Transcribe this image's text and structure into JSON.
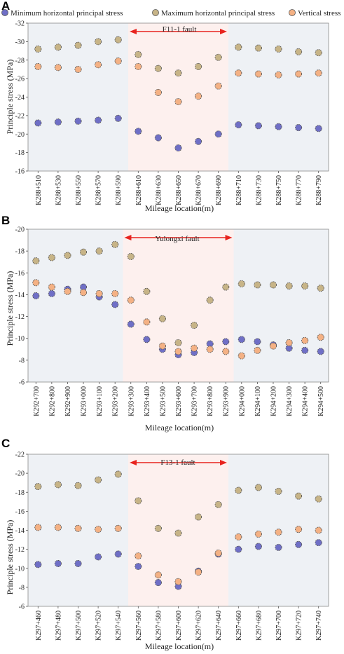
{
  "legend": [
    {
      "name": "Minimum horizontal principal stress",
      "color": "#6f6fc6"
    },
    {
      "name": "Maximum horizontal principal stress",
      "color": "#c7b487"
    },
    {
      "name": "Vertical stress",
      "color": "#f4b184"
    }
  ],
  "colors": {
    "fault_zone": "#fdf0ee",
    "outside_zone": "#eef1f5",
    "fault_arrow": "#e8231e"
  },
  "chart_data": [
    {
      "type": "scatter",
      "panel": "A",
      "fault_label": "F11-1 fault",
      "fault_range": [
        "K288+610",
        "K288+690"
      ],
      "xlabel": "Mileage location(m)",
      "ylabel": "Principle stress (MPa)",
      "ylim": [
        -32,
        -16
      ],
      "yticks": [
        -32,
        -30,
        -28,
        -26,
        -24,
        -22,
        -20,
        -18,
        -16
      ],
      "yaxis_inverted": true,
      "categories": [
        "K288+510",
        "K288+530",
        "K288+550",
        "K288+570",
        "K288+590",
        "K288+610",
        "K288+630",
        "K288+650",
        "K288+670",
        "K288+690",
        "K288+710",
        "K288+730",
        "K288+750",
        "K288+770",
        "K288+790"
      ],
      "series": [
        {
          "name": "Minimum horizontal principal stress",
          "values": [
            -21.2,
            -21.3,
            -21.4,
            -21.5,
            -21.7,
            -20.3,
            -19.6,
            -18.5,
            -19.2,
            -20.0,
            -21.0,
            -20.9,
            -20.8,
            -20.7,
            -20.6
          ]
        },
        {
          "name": "Maximum horizontal principal stress",
          "values": [
            -29.2,
            -29.4,
            -29.6,
            -30.0,
            -30.2,
            -28.6,
            -27.1,
            -26.6,
            -27.3,
            -28.3,
            -29.4,
            -29.3,
            -29.2,
            -28.9,
            -28.8
          ]
        },
        {
          "name": "Vertical stress",
          "values": [
            -27.3,
            -27.2,
            -27.0,
            -27.5,
            -27.9,
            -27.3,
            -24.5,
            -23.5,
            -24.1,
            -25.2,
            -26.6,
            -26.5,
            -26.4,
            -26.5,
            -26.6
          ]
        }
      ]
    },
    {
      "type": "scatter",
      "panel": "B",
      "fault_label": "Yulongxi fault",
      "fault_range": [
        "K293+300",
        "K293+900"
      ],
      "xlabel": "Mileage location(m)",
      "ylabel": "Principle stress (MPa)",
      "ylim": [
        -20,
        -6
      ],
      "yticks": [
        -20,
        -18,
        -16,
        -14,
        -12,
        -10,
        -8,
        -6
      ],
      "yaxis_inverted": true,
      "categories": [
        "K292+700",
        "K292+800",
        "K292+900",
        "K293+000",
        "K293+100",
        "K293+200",
        "K293+300",
        "K293+400",
        "K293+500",
        "K293+600",
        "K293+700",
        "K293+800",
        "K293+900",
        "K294+000",
        "K294+100",
        "K294+200",
        "K294+300",
        "K294+400",
        "K294+500"
      ],
      "series": [
        {
          "name": "Minimum horizontal principal stress",
          "values": [
            -13.9,
            -14.1,
            -14.5,
            -14.7,
            -13.8,
            -13.1,
            -11.3,
            -9.9,
            -9.0,
            -8.5,
            -8.7,
            -9.5,
            -9.7,
            -9.9,
            -9.7,
            -9.4,
            -9.1,
            -8.9,
            -8.8
          ]
        },
        {
          "name": "Maximum horizontal principal stress",
          "values": [
            -17.1,
            -17.4,
            -17.6,
            -17.9,
            -18.0,
            -18.6,
            -17.5,
            -14.3,
            -11.8,
            -9.6,
            -11.2,
            -13.5,
            -14.7,
            -15.0,
            -14.9,
            -14.9,
            -14.8,
            -14.8,
            -14.6
          ]
        },
        {
          "name": "Vertical stress",
          "values": [
            -15.1,
            -14.7,
            -14.3,
            -14.2,
            -14.1,
            -14.1,
            -13.5,
            -11.5,
            -9.3,
            -8.8,
            -9.1,
            -9.0,
            -8.8,
            -8.4,
            -8.9,
            -9.3,
            -9.6,
            -9.8,
            -10.1
          ]
        }
      ]
    },
    {
      "type": "scatter",
      "panel": "C",
      "fault_label": "F13-1 fault",
      "fault_range": [
        "K297+560",
        "K297+640"
      ],
      "xlabel": "Mileage location(m)",
      "ylabel": "Principle stress (MPa)",
      "ylim": [
        -22,
        -6
      ],
      "yticks": [
        -22,
        -20,
        -18,
        -16,
        -14,
        -12,
        -10,
        -8,
        -6
      ],
      "yaxis_inverted": true,
      "categories": [
        "K297+460",
        "K297+480",
        "K297+500",
        "K297+520",
        "K297+540",
        "K297+560",
        "K297+580",
        "K297+600",
        "K297+620",
        "K297+640",
        "K297+660",
        "K297+680",
        "K297+700",
        "K297+720",
        "K297+740"
      ],
      "series": [
        {
          "name": "Minimum horizontal principal stress",
          "values": [
            -10.4,
            -10.5,
            -10.5,
            -11.2,
            -11.5,
            -10.2,
            -8.5,
            -8.1,
            -9.7,
            -11.5,
            -12.0,
            -12.3,
            -12.2,
            -12.5,
            -12.7
          ]
        },
        {
          "name": "Maximum horizontal principal stress",
          "values": [
            -18.6,
            -18.8,
            -18.7,
            -19.3,
            -19.9,
            -17.1,
            -14.2,
            -13.7,
            -15.4,
            -16.7,
            -18.2,
            -18.5,
            -18.1,
            -17.6,
            -17.3
          ]
        },
        {
          "name": "Vertical stress",
          "values": [
            -14.3,
            -14.3,
            -14.2,
            -14.1,
            -14.2,
            -11.3,
            -9.3,
            -8.6,
            -9.6,
            -11.6,
            -13.3,
            -13.6,
            -13.8,
            -14.1,
            -14.0
          ]
        }
      ]
    }
  ]
}
